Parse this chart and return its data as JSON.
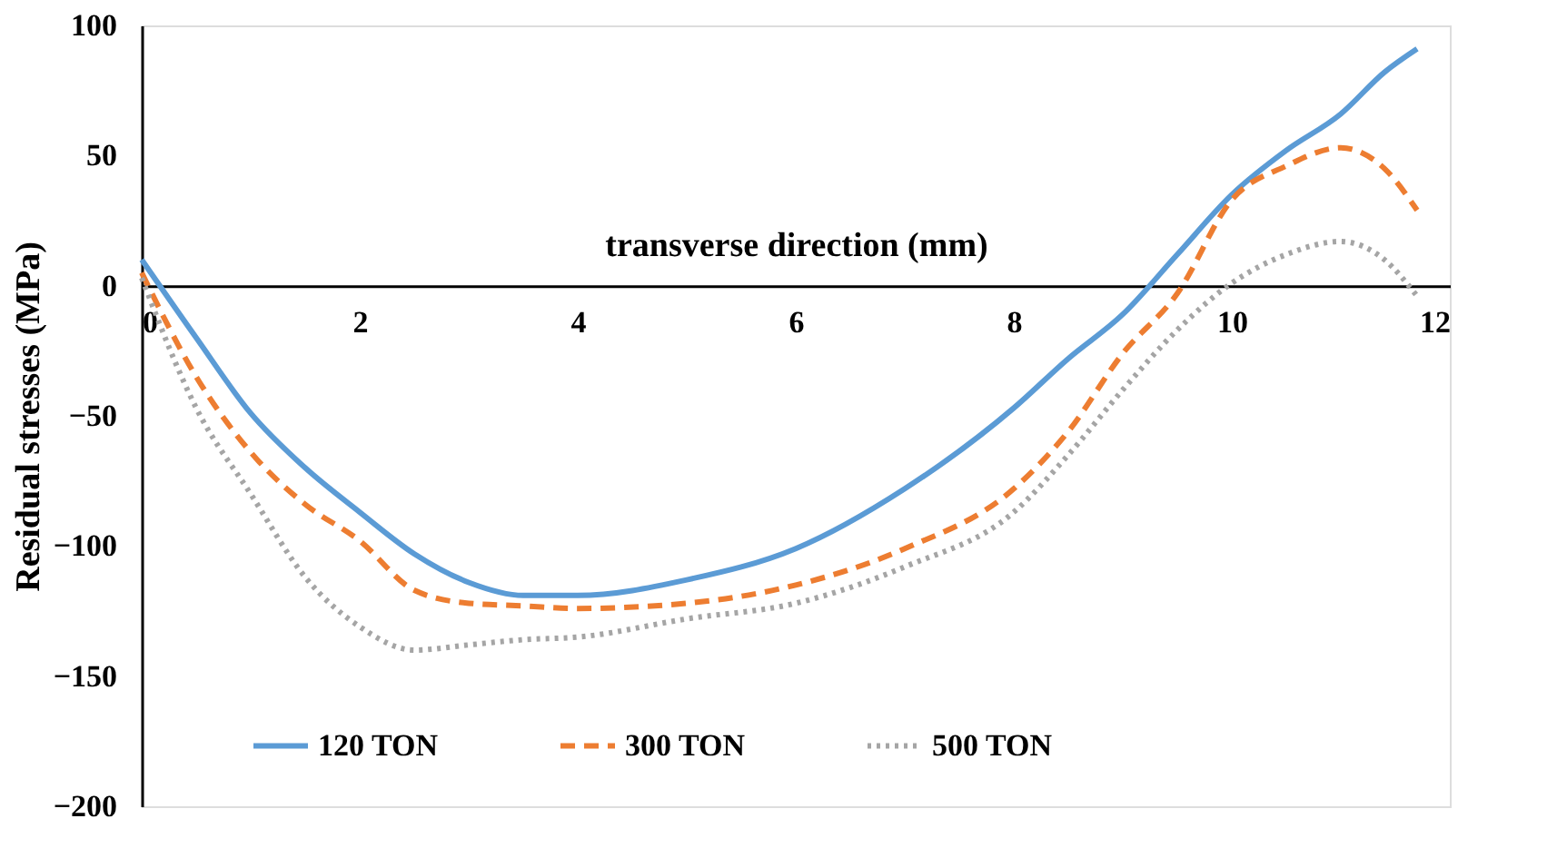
{
  "chart_data": {
    "type": "line",
    "xlabel": "transverse direction (mm)",
    "ylabel": "Residual stresses (MPa)",
    "x": [
      0,
      0.5,
      1,
      1.5,
      2,
      2.5,
      3,
      3.5,
      4,
      5,
      6,
      7,
      8,
      8.5,
      9,
      9.5,
      10,
      10.5,
      11,
      11.4,
      11.7
    ],
    "series": [
      {
        "name": "120 TON",
        "color": "#5b9bd5",
        "line_style": "solid",
        "values": [
          10,
          -20,
          -49,
          -70,
          -87,
          -103,
          -114,
          -119,
          -119,
          -113,
          -101,
          -78,
          -47,
          -28,
          -11,
          12,
          35,
          52,
          66,
          82,
          91
        ]
      },
      {
        "name": "300 TON",
        "color": "#ed7d31",
        "line_style": "dashed",
        "values": [
          5,
          -35,
          -64,
          -84,
          -98,
          -117,
          -122,
          -123,
          -124,
          -122,
          -115,
          -101,
          -78,
          -56,
          -26,
          -3,
          33,
          46,
          53,
          45,
          29
        ]
      },
      {
        "name": "500 TON",
        "color": "#a5a5a5",
        "line_style": "dotted",
        "values": [
          3,
          -47,
          -80,
          -112,
          -131,
          -140,
          -138,
          -136,
          -135,
          -128,
          -122,
          -108,
          -87,
          -65,
          -40,
          -17,
          1,
          12,
          17,
          10,
          -4
        ]
      }
    ],
    "xlim": [
      0,
      12
    ],
    "xticks": [
      0,
      2,
      4,
      6,
      8,
      10,
      12
    ],
    "ylim": [
      -200,
      100
    ],
    "yticks": [
      -200,
      -150,
      -100,
      -50,
      0,
      50,
      100
    ],
    "grid": false,
    "legend": "bottom",
    "marker": "none"
  }
}
